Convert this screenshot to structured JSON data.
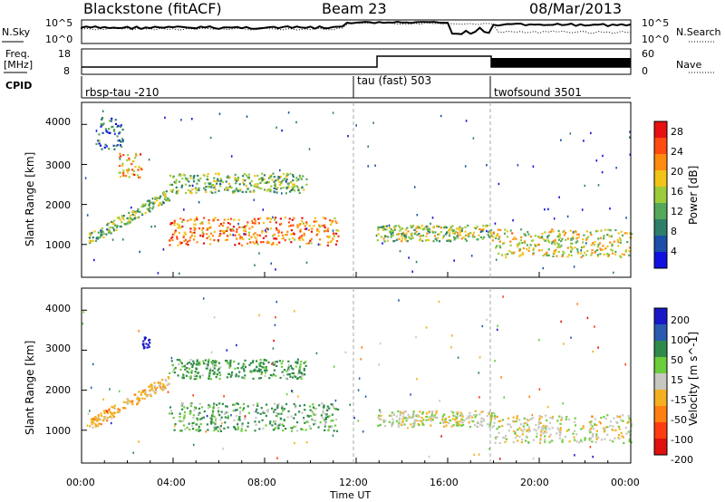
{
  "header": {
    "station": "Blackstone (fitACF)",
    "beam": "Beam 23",
    "date": "08/Mar/2013"
  },
  "noise_panel": {
    "left_label": "N.Sky",
    "right_label": "N.Search",
    "left_ticks": [
      "10^5",
      "10^0"
    ],
    "right_ticks": [
      "10^5",
      "10^0"
    ]
  },
  "freq_panel": {
    "left_label_1": "Freq.",
    "left_label_2": "[MHz]",
    "right_label": "Nave",
    "left_ticks": [
      "18",
      "8"
    ],
    "right_ticks": [
      "60",
      "0"
    ]
  },
  "cpid_panel": {
    "label": "CPID",
    "modes": [
      {
        "name": "rbsp-tau -210",
        "start_hour": 0
      },
      {
        "name": "tau (fast) 503",
        "start_hour": 12
      },
      {
        "name": "twofsound 3501",
        "start_hour": 18
      }
    ]
  },
  "power_panel": {
    "ylabel": "Slant Range [km]",
    "colorbar_label": "Power [dB]",
    "colorbar_ticks": [
      "28",
      "24",
      "20",
      "16",
      "12",
      "8",
      "4"
    ],
    "colors": [
      "#1010e0",
      "#1c4fa8",
      "#2e7f6a",
      "#55a85a",
      "#9ccc3a",
      "#f2c418",
      "#ff8a10",
      "#ff4a10",
      "#e81010"
    ]
  },
  "velocity_panel": {
    "ylabel": "Slant Range [km]",
    "colorbar_label": "Velocity [m s^-1]",
    "colorbar_ticks": [
      "200",
      "100",
      "50",
      "15",
      "-15",
      "-50",
      "-100",
      "-200"
    ],
    "colors": [
      "#1818c8",
      "#2a5bb0",
      "#2f8a4a",
      "#6ccd3a",
      "#c8c8c0",
      "#f5b020",
      "#ff8010",
      "#ff3c10",
      "#e01010"
    ]
  },
  "x_axis": {
    "label": "Time UT",
    "ticks": [
      "00:00",
      "04:00",
      "08:00",
      "12:00",
      "16:00",
      "20:00",
      "00:00"
    ]
  },
  "y_axis": {
    "ticks": [
      "4000",
      "3000",
      "2000",
      "1000"
    ]
  },
  "chart_data": {
    "type": "heatmap",
    "title": "Blackstone (fitACF) Beam 23 08/Mar/2013",
    "xlabel": "Time UT",
    "ylabel": "Slant Range [km]",
    "xlim": [
      0,
      24
    ],
    "ylim": [
      180,
      4550
    ],
    "cpid_switch_hours": [
      12,
      18
    ],
    "power_scatter_regions": [
      {
        "t0": 0.3,
        "t1": 3.8,
        "r0": 1000,
        "r1": 2400,
        "trend": "rising",
        "power_db": 12
      },
      {
        "t0": 0.6,
        "t1": 1.8,
        "r0": 3400,
        "r1": 4200,
        "power_db": 6
      },
      {
        "t0": 1.6,
        "t1": 2.6,
        "r0": 2700,
        "r1": 3300,
        "power_db": 20
      },
      {
        "t0": 3.8,
        "t1": 11.2,
        "r0": 1000,
        "r1": 1700,
        "power_db": 22
      },
      {
        "t0": 3.8,
        "t1": 9.8,
        "r0": 2300,
        "r1": 2800,
        "power_db": 12
      },
      {
        "t0": 12.9,
        "t1": 18.0,
        "r0": 1100,
        "r1": 1500,
        "power_db": 14
      },
      {
        "t0": 18.0,
        "t1": 24.0,
        "r0": 700,
        "r1": 1400,
        "power_db": 16
      }
    ],
    "velocity_scatter_regions": [
      {
        "t0": 0.3,
        "t1": 3.8,
        "r0": 1000,
        "r1": 2400,
        "trend": "rising",
        "velocity_ms": -30
      },
      {
        "t0": 2.6,
        "t1": 3.0,
        "r0": 3050,
        "r1": 3350,
        "velocity_ms": 200
      },
      {
        "t0": 3.8,
        "t1": 11.2,
        "r0": 1000,
        "r1": 1700,
        "velocity_ms": 30
      },
      {
        "t0": 3.8,
        "t1": 9.8,
        "r0": 2300,
        "r1": 2800,
        "velocity_ms": 40
      },
      {
        "t0": 12.9,
        "t1": 18.0,
        "r0": 1100,
        "r1": 1500,
        "velocity_ms": 0
      },
      {
        "t0": 18.0,
        "t1": 24.0,
        "r0": 700,
        "r1": 1400,
        "velocity_ms": 0
      }
    ]
  }
}
